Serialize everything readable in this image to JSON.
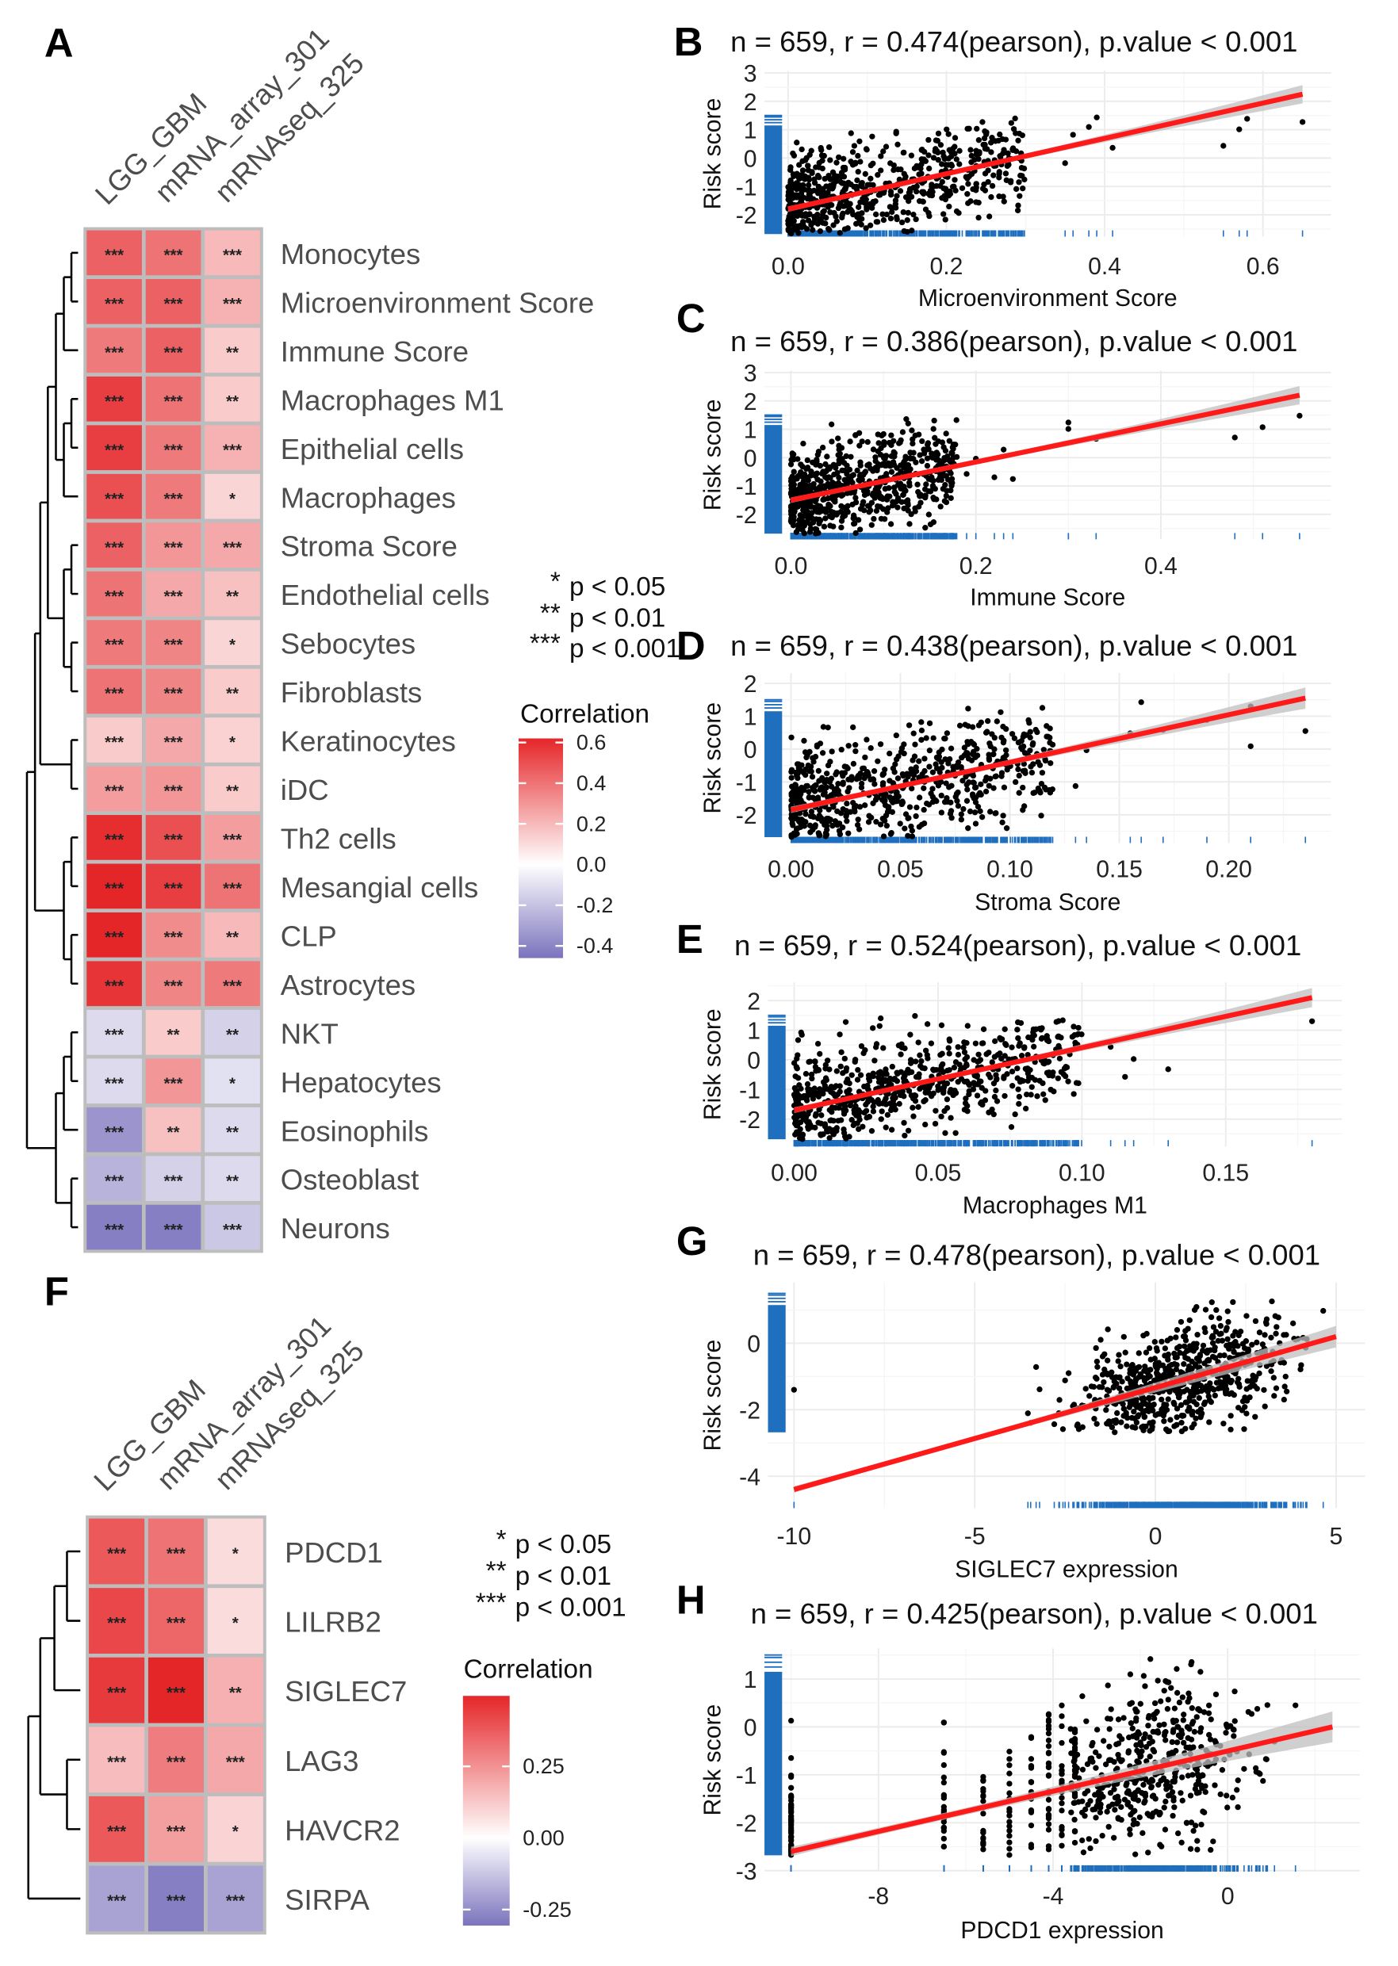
{
  "panel_labels": {
    "A": "A",
    "B": "B",
    "C": "C",
    "D": "D",
    "E": "E",
    "F": "F",
    "G": "G",
    "H": "H"
  },
  "chart_data": [
    {
      "panel": "A",
      "type": "heatmap",
      "columns": [
        "LGG_GBM",
        "mRNA_array_301",
        "mRNAseq_325"
      ],
      "rows": [
        "Monocytes",
        "Microenvironment Score",
        "Immune Score",
        "Macrophages M1",
        "Epithelial cells",
        "Macrophages",
        "Stroma Score",
        "Endothelial cells",
        "Sebocytes",
        "Fibroblasts",
        "Keratinocytes",
        "iDC",
        "Th2 cells",
        "Mesangial cells",
        "CLP",
        "Astrocytes",
        "NKT",
        "Hepatocytes",
        "Eosinophils",
        "Osteoblast",
        "Neurons"
      ],
      "values": [
        [
          0.45,
          0.4,
          0.2
        ],
        [
          0.45,
          0.45,
          0.22
        ],
        [
          0.38,
          0.45,
          0.15
        ],
        [
          0.55,
          0.4,
          0.15
        ],
        [
          0.55,
          0.38,
          0.22
        ],
        [
          0.5,
          0.38,
          0.12
        ],
        [
          0.45,
          0.3,
          0.25
        ],
        [
          0.4,
          0.25,
          0.18
        ],
        [
          0.38,
          0.35,
          0.12
        ],
        [
          0.4,
          0.35,
          0.15
        ],
        [
          0.15,
          0.25,
          0.13
        ],
        [
          0.28,
          0.3,
          0.15
        ],
        [
          0.6,
          0.5,
          0.28
        ],
        [
          0.65,
          0.55,
          0.4
        ],
        [
          0.65,
          0.33,
          0.2
        ],
        [
          0.58,
          0.35,
          0.38
        ],
        [
          -0.12,
          0.15,
          -0.15
        ],
        [
          -0.12,
          0.3,
          -0.1
        ],
        [
          -0.35,
          0.18,
          -0.12
        ],
        [
          -0.25,
          -0.15,
          -0.12
        ],
        [
          -0.42,
          -0.42,
          -0.18
        ]
      ],
      "significance": [
        [
          "***",
          "***",
          "***"
        ],
        [
          "***",
          "***",
          "***"
        ],
        [
          "***",
          "***",
          "**"
        ],
        [
          "***",
          "***",
          "**"
        ],
        [
          "***",
          "***",
          "***"
        ],
        [
          "***",
          "***",
          "*"
        ],
        [
          "***",
          "***",
          "***"
        ],
        [
          "***",
          "***",
          "**"
        ],
        [
          "***",
          "***",
          "*"
        ],
        [
          "***",
          "***",
          "**"
        ],
        [
          "***",
          "***",
          "*"
        ],
        [
          "***",
          "***",
          "**"
        ],
        [
          "***",
          "***",
          "***"
        ],
        [
          "***",
          "***",
          "***"
        ],
        [
          "***",
          "***",
          "**"
        ],
        [
          "***",
          "***",
          "***"
        ],
        [
          "***",
          "**",
          "**"
        ],
        [
          "***",
          "***",
          "*"
        ],
        [
          "***",
          "**",
          "**"
        ],
        [
          "***",
          "***",
          "**"
        ],
        [
          "***",
          "***",
          "***"
        ]
      ],
      "significance_legend": [
        {
          "stars": "*",
          "label": "p < 0.05"
        },
        {
          "stars": "**",
          "label": "p < 0.01"
        },
        {
          "stars": "***",
          "label": "p < 0.001"
        }
      ],
      "legend": {
        "title": "Correlation",
        "ticks": [
          "0.6",
          "0.4",
          "0.2",
          "0.0",
          "-0.2",
          "-0.4"
        ],
        "range": [
          -0.46,
          0.62
        ]
      },
      "colors": {
        "low": "#7b73bd",
        "mid": "#ffffff",
        "high": "#e52629",
        "border": "#bdbdbd"
      }
    },
    {
      "panel": "B",
      "type": "scatter",
      "title": "n = 659, r = 0.474(pearson), p.value < 0.001",
      "n": 659,
      "r": 0.474,
      "xlabel": "Microenvironment Score",
      "ylabel": "Risk score",
      "xticks": [
        "0.0",
        "0.2",
        "0.4",
        "0.6"
      ],
      "yticks": [
        "-2",
        "-1",
        "0",
        "1",
        "2",
        "3"
      ],
      "xlim": [
        -0.0299,
        0.686
      ],
      "ylim": [
        -2.77,
        3.07
      ],
      "fit": {
        "x": [
          0,
          0.65
        ],
        "y": [
          -1.8,
          2.25
        ]
      }
    },
    {
      "panel": "C",
      "type": "scatter",
      "title": "n = 659, r = 0.386(pearson), p.value < 0.001",
      "n": 659,
      "r": 0.386,
      "xlabel": "Immune Score",
      "ylabel": "Risk score",
      "xticks": [
        "0.0",
        "0.2",
        "0.4"
      ],
      "yticks": [
        "-2",
        "-1",
        "0",
        "1",
        "2",
        "3"
      ],
      "xlim": [
        -0.0286,
        0.584
      ],
      "ylim": [
        -2.88,
        3.07
      ],
      "fit": {
        "x": [
          0,
          0.55
        ],
        "y": [
          -1.5,
          2.2
        ]
      }
    },
    {
      "panel": "D",
      "type": "scatter",
      "title": "n = 659, r = 0.438(pearson), p.value < 0.001",
      "n": 659,
      "r": 0.438,
      "xlabel": "Stroma Score",
      "ylabel": "Risk score",
      "xticks": [
        "0.00",
        "0.05",
        "0.10",
        "0.15",
        "0.20"
      ],
      "yticks": [
        "-2",
        "-1",
        "0",
        "1",
        "2"
      ],
      "xlim": [
        -0.0121,
        0.2467
      ],
      "ylim": [
        -2.86,
        2.31
      ],
      "fit": {
        "x": [
          0,
          0.235
        ],
        "y": [
          -1.85,
          1.55
        ]
      }
    },
    {
      "panel": "E",
      "type": "scatter",
      "title": "n = 659, r = 0.524(pearson), p.value < 0.001",
      "n": 659,
      "r": 0.524,
      "xlabel": "Macrophages M1",
      "ylabel": "Risk score",
      "xticks": [
        "0.00",
        "0.05",
        "0.10",
        "0.15"
      ],
      "yticks": [
        "-2",
        "-1",
        "0",
        "1",
        "2"
      ],
      "xlim": [
        -0.0091,
        0.1904
      ],
      "ylim": [
        -2.92,
        2.61
      ],
      "fit": {
        "x": [
          0,
          0.18
        ],
        "y": [
          -1.7,
          2.1
        ]
      }
    },
    {
      "panel": "F",
      "type": "heatmap",
      "columns": [
        "LGG_GBM",
        "mRNA_array_301",
        "mRNAseq_325"
      ],
      "rows": [
        "PDCD1",
        "LILRB2",
        "SIGLEC7",
        "LAG3",
        "HAVCR2",
        "SIRPA"
      ],
      "values": [
        [
          0.38,
          0.32,
          0.08
        ],
        [
          0.42,
          0.35,
          0.08
        ],
        [
          0.45,
          0.5,
          0.18
        ],
        [
          0.15,
          0.3,
          0.2
        ],
        [
          0.38,
          0.22,
          0.1
        ],
        [
          -0.2,
          -0.28,
          -0.2
        ]
      ],
      "significance": [
        [
          "***",
          "***",
          "*"
        ],
        [
          "***",
          "***",
          "*"
        ],
        [
          "***",
          "***",
          "**"
        ],
        [
          "***",
          "***",
          "***"
        ],
        [
          "***",
          "***",
          "*"
        ],
        [
          "***",
          "***",
          "***"
        ]
      ],
      "significance_legend": [
        {
          "stars": "*",
          "label": "p < 0.05"
        },
        {
          "stars": "**",
          "label": "p < 0.01"
        },
        {
          "stars": "***",
          "label": "p < 0.001"
        }
      ],
      "legend": {
        "title": "Correlation",
        "ticks": [
          "0.25",
          "0.00",
          "-0.25"
        ],
        "range": [
          -0.306,
          0.496
        ]
      },
      "colors": {
        "low": "#7b73bd",
        "mid": "#ffffff",
        "high": "#e52629",
        "border": "#bdbdbd"
      }
    },
    {
      "panel": "G",
      "type": "scatter",
      "title": "n = 659, r = 0.478(pearson), p.value < 0.001",
      "n": 659,
      "r": 0.478,
      "xlabel": "SIGLEC7 expression",
      "ylabel": "Risk score",
      "xticks": [
        "-10",
        "-5",
        "0",
        "5"
      ],
      "yticks": [
        "-4",
        "-2",
        "0"
      ],
      "xlim": [
        -10.72,
        5.8
      ],
      "ylim": [
        -4.96,
        1.83
      ],
      "fit": {
        "x": [
          -10,
          5
        ],
        "y": [
          -4.4,
          0.2
        ]
      }
    },
    {
      "panel": "H",
      "type": "scatter",
      "title": "n = 659, r = 0.425(pearson), p.value < 0.001",
      "n": 659,
      "r": 0.425,
      "xlabel": "PDCD1 expression",
      "ylabel": "Risk score",
      "xticks": [
        "-8",
        "-4",
        "0"
      ],
      "yticks": [
        "-3",
        "-2",
        "-1",
        "0",
        "1"
      ],
      "xlim": [
        -10.61,
        3.03
      ],
      "ylim": [
        -3.02,
        1.64
      ],
      "fit": {
        "x": [
          -10,
          2.4
        ],
        "y": [
          -2.6,
          0.0
        ]
      }
    }
  ],
  "scatter_colors": {
    "points": "#000000",
    "fit_line": "#ff1a1a",
    "confidence_band": "#bfbfbf",
    "rug": "#1f6fbf",
    "grid": "#ebebeb"
  }
}
